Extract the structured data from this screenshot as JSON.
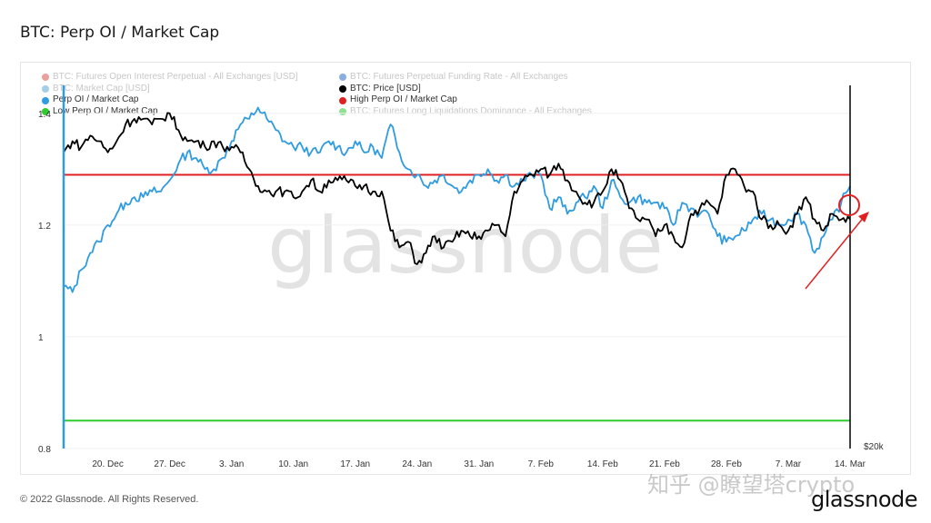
{
  "page": {
    "title": "BTC: Perp OI / Market Cap",
    "copyright": "© 2022 Glassnode. All Rights Reserved.",
    "brand": "glassnode",
    "chart_watermark": "glassnode",
    "corner_watermark": "知乎 @瞭望塔crypto"
  },
  "legend": [
    {
      "label": "BTC: Futures Open Interest Perpetual - All Exchanges [USD]",
      "color": "#d9534f",
      "faded": true
    },
    {
      "label": "BTC: Futures Perpetual Funding Rate - All Exchanges",
      "color": "#2a6cc7",
      "faded": true
    },
    {
      "label": "BTC: Market Cap [USD]",
      "color": "#5aa7d6",
      "faded": true
    },
    {
      "label": "BTC: Price [USD]",
      "color": "#000000",
      "faded": false
    },
    {
      "label": "Perp OI / Market Cap",
      "color": "#2f9be0",
      "faded": false
    },
    {
      "label": "High Perp OI / Market Cap",
      "color": "#e02020",
      "faded": false
    },
    {
      "label": "Low Perp OI / Market Cap",
      "color": "#2ecc2e",
      "faded": false
    },
    {
      "label": "BTC: Futures Long Liquidations Dominance - All Exchanges",
      "color": "#2ecc2e",
      "faded": true
    }
  ],
  "chart_data": {
    "type": "line",
    "x_ticks": [
      "20. Dec",
      "27. Dec",
      "3. Jan",
      "10. Jan",
      "17. Jan",
      "24. Jan",
      "31. Jan",
      "7. Feb",
      "14. Feb",
      "21. Feb",
      "28. Feb",
      "7. Mar",
      "14. Mar"
    ],
    "y_ticks": [
      "0.8",
      "1",
      "1.2",
      "1.4"
    ],
    "ylim": [
      0.8,
      1.45
    ],
    "right_axis_ticks": [
      "$20k"
    ],
    "reference_lines": [
      {
        "name": "High Perp OI / Market Cap",
        "value": 1.29,
        "color": "#e02020"
      },
      {
        "name": "Low Perp OI / Market Cap",
        "value": 0.85,
        "color": "#2ecc2e"
      }
    ],
    "series": [
      {
        "name": "Perp OI / Market Cap",
        "color": "#2f9be0",
        "x": [
          "2021-12-15",
          "2021-12-16",
          "2021-12-17",
          "2021-12-18",
          "2021-12-19",
          "2021-12-20",
          "2021-12-21",
          "2021-12-22",
          "2021-12-23",
          "2021-12-24",
          "2021-12-25",
          "2021-12-26",
          "2021-12-27",
          "2021-12-28",
          "2021-12-29",
          "2021-12-30",
          "2021-12-31",
          "2022-01-01",
          "2022-01-02",
          "2022-01-03",
          "2022-01-04",
          "2022-01-05",
          "2022-01-06",
          "2022-01-07",
          "2022-01-08",
          "2022-01-09",
          "2022-01-10",
          "2022-01-11",
          "2022-01-12",
          "2022-01-13",
          "2022-01-14",
          "2022-01-15",
          "2022-01-16",
          "2022-01-17",
          "2022-01-18",
          "2022-01-19",
          "2022-01-20",
          "2022-01-21",
          "2022-01-22",
          "2022-01-23",
          "2022-01-24",
          "2022-01-25",
          "2022-01-26",
          "2022-01-27",
          "2022-01-28",
          "2022-01-29",
          "2022-01-30",
          "2022-01-31",
          "2022-02-01",
          "2022-02-02",
          "2022-02-03",
          "2022-02-04",
          "2022-02-05",
          "2022-02-06",
          "2022-02-07",
          "2022-02-08",
          "2022-02-09",
          "2022-02-10",
          "2022-02-11",
          "2022-02-12",
          "2022-02-13",
          "2022-02-14",
          "2022-02-15",
          "2022-02-16",
          "2022-02-17",
          "2022-02-18",
          "2022-02-19",
          "2022-02-20",
          "2022-02-21",
          "2022-02-22",
          "2022-02-23",
          "2022-02-24",
          "2022-02-25",
          "2022-02-26",
          "2022-02-27",
          "2022-02-28",
          "2022-03-01",
          "2022-03-02",
          "2022-03-03",
          "2022-03-04",
          "2022-03-05",
          "2022-03-06",
          "2022-03-07",
          "2022-03-08",
          "2022-03-09",
          "2022-03-10",
          "2022-03-11",
          "2022-03-12",
          "2022-03-13",
          "2022-03-14"
        ],
        "values": [
          1.09,
          1.08,
          1.12,
          1.15,
          1.17,
          1.2,
          1.22,
          1.24,
          1.25,
          1.25,
          1.26,
          1.26,
          1.28,
          1.31,
          1.33,
          1.32,
          1.3,
          1.3,
          1.32,
          1.35,
          1.38,
          1.39,
          1.41,
          1.39,
          1.37,
          1.35,
          1.34,
          1.34,
          1.33,
          1.33,
          1.35,
          1.34,
          1.33,
          1.35,
          1.33,
          1.34,
          1.32,
          1.38,
          1.33,
          1.3,
          1.29,
          1.27,
          1.28,
          1.29,
          1.27,
          1.26,
          1.28,
          1.29,
          1.3,
          1.28,
          1.29,
          1.27,
          1.28,
          1.29,
          1.29,
          1.23,
          1.25,
          1.22,
          1.24,
          1.25,
          1.27,
          1.23,
          1.28,
          1.25,
          1.24,
          1.25,
          1.24,
          1.24,
          1.23,
          1.2,
          1.24,
          1.23,
          1.22,
          1.22,
          1.18,
          1.17,
          1.18,
          1.19,
          1.21,
          1.22,
          1.21,
          1.2,
          1.21,
          1.22,
          1.2,
          1.15,
          1.18,
          1.21,
          1.24,
          1.27
        ]
      },
      {
        "name": "BTC: Price [USD]",
        "color": "#000000",
        "x": [
          "2021-12-15",
          "2021-12-16",
          "2021-12-17",
          "2021-12-18",
          "2021-12-19",
          "2021-12-20",
          "2021-12-21",
          "2021-12-22",
          "2021-12-23",
          "2021-12-24",
          "2021-12-25",
          "2021-12-26",
          "2021-12-27",
          "2021-12-28",
          "2021-12-29",
          "2021-12-30",
          "2021-12-31",
          "2022-01-01",
          "2022-01-02",
          "2022-01-03",
          "2022-01-04",
          "2022-01-05",
          "2022-01-06",
          "2022-01-07",
          "2022-01-08",
          "2022-01-09",
          "2022-01-10",
          "2022-01-11",
          "2022-01-12",
          "2022-01-13",
          "2022-01-14",
          "2022-01-15",
          "2022-01-16",
          "2022-01-17",
          "2022-01-18",
          "2022-01-19",
          "2022-01-20",
          "2022-01-21",
          "2022-01-22",
          "2022-01-23",
          "2022-01-24",
          "2022-01-25",
          "2022-01-26",
          "2022-01-27",
          "2022-01-28",
          "2022-01-29",
          "2022-01-30",
          "2022-01-31",
          "2022-02-01",
          "2022-02-02",
          "2022-02-03",
          "2022-02-04",
          "2022-02-05",
          "2022-02-06",
          "2022-02-07",
          "2022-02-08",
          "2022-02-09",
          "2022-02-10",
          "2022-02-11",
          "2022-02-12",
          "2022-02-13",
          "2022-02-14",
          "2022-02-15",
          "2022-02-16",
          "2022-02-17",
          "2022-02-18",
          "2022-02-19",
          "2022-02-20",
          "2022-02-21",
          "2022-02-22",
          "2022-02-23",
          "2022-02-24",
          "2022-02-25",
          "2022-02-26",
          "2022-02-27",
          "2022-02-28",
          "2022-03-01",
          "2022-03-02",
          "2022-03-03",
          "2022-03-04",
          "2022-03-05",
          "2022-03-06",
          "2022-03-07",
          "2022-03-08",
          "2022-03-09",
          "2022-03-10",
          "2022-03-11",
          "2022-03-12",
          "2022-03-13",
          "2022-03-14"
        ],
        "values": [
          1.33,
          1.35,
          1.34,
          1.36,
          1.35,
          1.33,
          1.35,
          1.38,
          1.39,
          1.39,
          1.38,
          1.39,
          1.4,
          1.37,
          1.35,
          1.35,
          1.34,
          1.35,
          1.34,
          1.34,
          1.33,
          1.3,
          1.27,
          1.26,
          1.26,
          1.26,
          1.25,
          1.26,
          1.28,
          1.26,
          1.28,
          1.28,
          1.28,
          1.27,
          1.27,
          1.26,
          1.26,
          1.19,
          1.16,
          1.17,
          1.13,
          1.15,
          1.18,
          1.16,
          1.17,
          1.19,
          1.18,
          1.18,
          1.19,
          1.2,
          1.18,
          1.26,
          1.28,
          1.29,
          1.3,
          1.29,
          1.31,
          1.28,
          1.26,
          1.24,
          1.24,
          1.26,
          1.3,
          1.28,
          1.23,
          1.21,
          1.21,
          1.18,
          1.2,
          1.18,
          1.16,
          1.22,
          1.23,
          1.24,
          1.22,
          1.29,
          1.3,
          1.27,
          1.26,
          1.21,
          1.2,
          1.2,
          1.19,
          1.22,
          1.25,
          1.21,
          1.19,
          1.22,
          1.21,
          1.21
        ]
      }
    ]
  }
}
